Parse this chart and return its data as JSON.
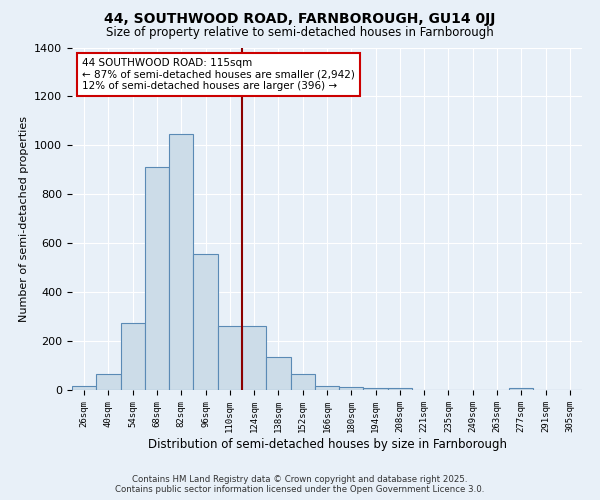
{
  "title": "44, SOUTHWOOD ROAD, FARNBOROUGH, GU14 0JJ",
  "subtitle": "Size of property relative to semi-detached houses in Farnborough",
  "xlabel": "Distribution of semi-detached houses by size in Farnborough",
  "ylabel": "Number of semi-detached properties",
  "bins": [
    "26sqm",
    "40sqm",
    "54sqm",
    "68sqm",
    "82sqm",
    "96sqm",
    "110sqm",
    "124sqm",
    "138sqm",
    "152sqm",
    "166sqm",
    "180sqm",
    "194sqm",
    "208sqm",
    "221sqm",
    "235sqm",
    "249sqm",
    "263sqm",
    "277sqm",
    "291sqm",
    "305sqm"
  ],
  "values": [
    18,
    65,
    275,
    910,
    1045,
    555,
    260,
    260,
    135,
    65,
    18,
    12,
    10,
    10,
    0,
    0,
    0,
    0,
    10,
    0,
    0
  ],
  "bar_color": "#ccdce8",
  "bar_edge_color": "#5a8ab5",
  "vline_color": "#8b0000",
  "annotation_text": "44 SOUTHWOOD ROAD: 115sqm\n← 87% of semi-detached houses are smaller (2,942)\n12% of semi-detached houses are larger (396) →",
  "box_facecolor": "#ffffff",
  "box_edgecolor": "#cc0000",
  "footer": "Contains HM Land Registry data © Crown copyright and database right 2025.\nContains public sector information licensed under the Open Government Licence 3.0.",
  "background_color": "#e8f0f8",
  "axes_background": "#e8f0f8",
  "grid_color": "#ffffff",
  "ylim": [
    0,
    1400
  ],
  "yticks": [
    0,
    200,
    400,
    600,
    800,
    1000,
    1200,
    1400
  ]
}
